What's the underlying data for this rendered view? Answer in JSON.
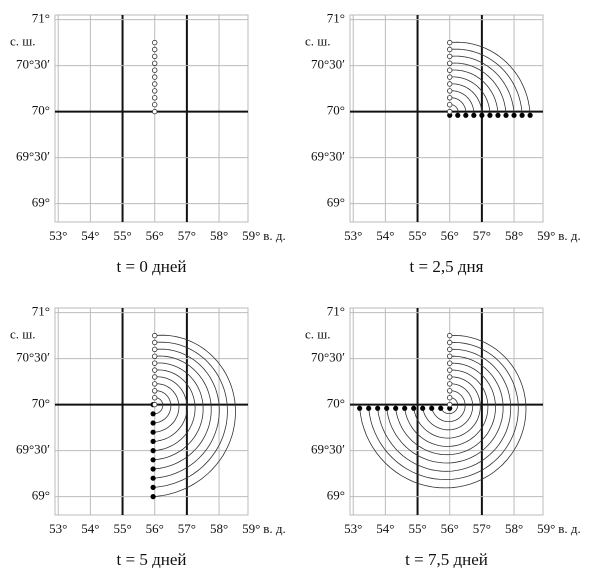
{
  "chart_data": [
    {
      "type": "trajectory",
      "title": "t = 0 дней",
      "x_unit_label": "в. д.",
      "y_unit_label": "с. ш.",
      "xlim": [
        52.9,
        58.9
      ],
      "ylim": [
        68.8,
        71.05
      ],
      "xticks": [
        {
          "value": 53,
          "label": "53°"
        },
        {
          "value": 54,
          "label": "54°"
        },
        {
          "value": 55,
          "label": "55°"
        },
        {
          "value": 56,
          "label": "56°"
        },
        {
          "value": 57,
          "label": "57°"
        },
        {
          "value": 58,
          "label": "58°"
        },
        {
          "value": 59,
          "label": "59°"
        }
      ],
      "yticks": [
        {
          "value": 71,
          "label": "71°"
        },
        {
          "value": 70.5,
          "label": "70°30′"
        },
        {
          "value": 70,
          "label": "70°"
        },
        {
          "value": 69.5,
          "label": "69°30′"
        },
        {
          "value": 69,
          "label": "69°"
        }
      ],
      "emphasized_x": [
        55,
        57
      ],
      "emphasized_y": [
        70
      ],
      "start": {
        "lon": [
          56,
          56,
          56,
          56,
          56,
          56,
          56,
          56,
          56,
          56,
          56
        ],
        "lat": [
          70,
          70.075,
          70.15,
          70.225,
          70.3,
          70.375,
          70.45,
          70.525,
          70.6,
          70.675,
          70.75
        ]
      }
    },
    {
      "type": "trajectory",
      "title": "t = 2,5 дня",
      "x_unit_label": "в. д.",
      "y_unit_label": "с. ш.",
      "xlim": [
        52.9,
        58.9
      ],
      "ylim": [
        68.8,
        71.05
      ],
      "xticks": [
        {
          "value": 53,
          "label": "53°"
        },
        {
          "value": 54,
          "label": "54°"
        },
        {
          "value": 55,
          "label": "55°"
        },
        {
          "value": 56,
          "label": "56°"
        },
        {
          "value": 57,
          "label": "57°"
        },
        {
          "value": 58,
          "label": "58°"
        },
        {
          "value": 59,
          "label": "59°"
        }
      ],
      "yticks": [
        {
          "value": 71,
          "label": "71°"
        },
        {
          "value": 70.5,
          "label": "70°30′"
        },
        {
          "value": 70,
          "label": "70°"
        },
        {
          "value": 69.5,
          "label": "69°30′"
        },
        {
          "value": 69,
          "label": "69°"
        }
      ],
      "emphasized_x": [
        55,
        57
      ],
      "emphasized_y": [
        70
      ],
      "start": {
        "lon": [
          56,
          56,
          56,
          56,
          56,
          56,
          56,
          56,
          56,
          56,
          56
        ],
        "lat": [
          70,
          70.075,
          70.15,
          70.225,
          70.3,
          70.375,
          70.45,
          70.525,
          70.6,
          70.675,
          70.75
        ]
      },
      "end": {
        "lon": [
          56,
          56.25,
          56.5,
          56.75,
          57,
          57.25,
          57.5,
          57.75,
          58,
          58.25,
          58.5
        ],
        "lat": [
          69.96,
          69.96,
          69.96,
          69.96,
          69.96,
          69.96,
          69.96,
          69.96,
          69.96,
          69.96,
          69.96
        ]
      }
    },
    {
      "type": "trajectory",
      "title": "t = 5 дней",
      "x_unit_label": "в. д.",
      "y_unit_label": "с. ш.",
      "xlim": [
        52.9,
        58.9
      ],
      "ylim": [
        68.8,
        71.05
      ],
      "xticks": [
        {
          "value": 53,
          "label": "53°"
        },
        {
          "value": 54,
          "label": "54°"
        },
        {
          "value": 55,
          "label": "55°"
        },
        {
          "value": 56,
          "label": "56°"
        },
        {
          "value": 57,
          "label": "57°"
        },
        {
          "value": 58,
          "label": "58°"
        },
        {
          "value": 59,
          "label": "59°"
        }
      ],
      "yticks": [
        {
          "value": 71,
          "label": "71°"
        },
        {
          "value": 70.5,
          "label": "70°30′"
        },
        {
          "value": 70,
          "label": "70°"
        },
        {
          "value": 69.5,
          "label": "69°30′"
        },
        {
          "value": 69,
          "label": "69°"
        }
      ],
      "emphasized_x": [
        55,
        57
      ],
      "emphasized_y": [
        70
      ],
      "start": {
        "lon": [
          56,
          56,
          56,
          56,
          56,
          56,
          56,
          56,
          56,
          56,
          56
        ],
        "lat": [
          70,
          70.075,
          70.15,
          70.225,
          70.3,
          70.375,
          70.45,
          70.525,
          70.6,
          70.675,
          70.75
        ]
      },
      "end": {
        "lon": [
          55.95,
          55.95,
          55.95,
          55.95,
          55.95,
          55.95,
          55.95,
          55.95,
          55.95,
          55.95,
          55.95
        ],
        "lat": [
          70,
          69.9,
          69.8,
          69.7,
          69.6,
          69.5,
          69.4,
          69.3,
          69.2,
          69.1,
          69.0
        ]
      }
    },
    {
      "type": "trajectory",
      "title": "t = 7,5 дней",
      "x_unit_label": "в. д.",
      "y_unit_label": "с. ш.",
      "xlim": [
        52.9,
        58.9
      ],
      "ylim": [
        68.8,
        71.05
      ],
      "xticks": [
        {
          "value": 53,
          "label": "53°"
        },
        {
          "value": 54,
          "label": "54°"
        },
        {
          "value": 55,
          "label": "55°"
        },
        {
          "value": 56,
          "label": "56°"
        },
        {
          "value": 57,
          "label": "57°"
        },
        {
          "value": 58,
          "label": "58°"
        },
        {
          "value": 59,
          "label": "59°"
        }
      ],
      "yticks": [
        {
          "value": 71,
          "label": "71°"
        },
        {
          "value": 70.5,
          "label": "70°30′"
        },
        {
          "value": 70,
          "label": "70°"
        },
        {
          "value": 69.5,
          "label": "69°30′"
        },
        {
          "value": 69,
          "label": "69°"
        }
      ],
      "emphasized_x": [
        55,
        57
      ],
      "emphasized_y": [
        70
      ],
      "start": {
        "lon": [
          56,
          56,
          56,
          56,
          56,
          56,
          56,
          56,
          56,
          56,
          56
        ],
        "lat": [
          70,
          70.075,
          70.15,
          70.225,
          70.3,
          70.375,
          70.45,
          70.525,
          70.6,
          70.675,
          70.75
        ]
      },
      "end": {
        "lon": [
          56,
          55.72,
          55.44,
          55.16,
          54.88,
          54.6,
          54.32,
          54.04,
          53.76,
          53.48,
          53.2
        ],
        "lat": [
          69.96,
          69.96,
          69.96,
          69.96,
          69.96,
          69.96,
          69.96,
          69.96,
          69.96,
          69.96,
          69.96
        ]
      }
    }
  ]
}
